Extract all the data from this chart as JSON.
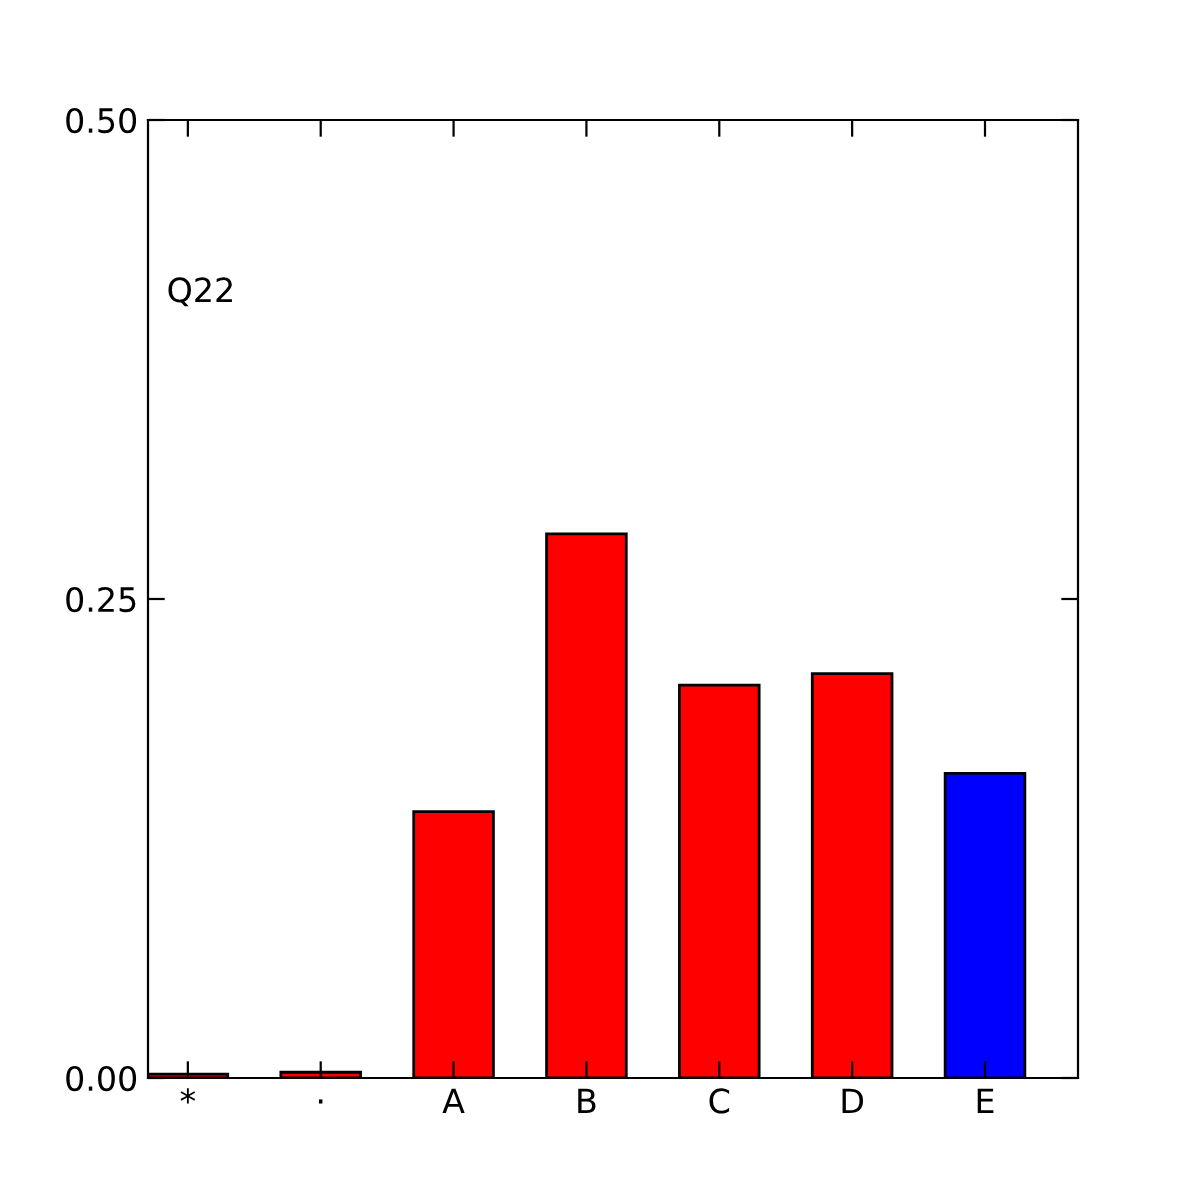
{
  "chart_data": {
    "type": "bar",
    "categories": [
      "*",
      "·",
      "A",
      "B",
      "C",
      "D",
      "E"
    ],
    "values": [
      0.002,
      0.003,
      0.139,
      0.284,
      0.205,
      0.211,
      0.159
    ],
    "colors": [
      "#ff0000",
      "#ff0000",
      "#ff0000",
      "#ff0000",
      "#ff0000",
      "#ff0000",
      "#0000ff"
    ],
    "ylim": [
      0,
      0.5
    ],
    "yticks": [
      {
        "value": 0,
        "label": "0.00"
      },
      {
        "value": 0.25,
        "label": "0.25"
      },
      {
        "value": 0.5,
        "label": "0.50"
      }
    ],
    "annotations": [
      "Q22"
    ],
    "grid": false,
    "legend": false
  }
}
